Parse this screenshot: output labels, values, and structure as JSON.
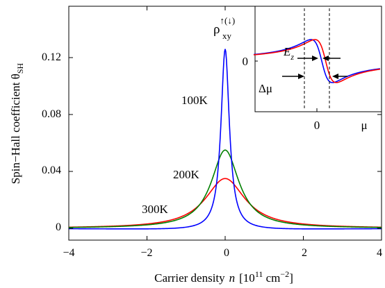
{
  "chart_data": [
    {
      "type": "line",
      "xlabel_main": "Carrier density",
      "xlabel_var": "n",
      "xlabel_unit": "[10",
      "xlabel_exp1": "11",
      "xlabel_unit2": " cm",
      "xlabel_exp2": "−2",
      "xlabel_close": "]",
      "ylabel_main": "Spin−Hall coefficient  θ",
      "ylabel_sub": "SH",
      "xlim": [
        -4,
        4
      ],
      "ylim": [
        -0.008,
        0.145
      ],
      "x_ticks": [
        -4,
        -2,
        0,
        2,
        4
      ],
      "x_tick_labels": [
        "−4",
        "−2",
        "0",
        "2",
        "4"
      ],
      "y_ticks": [
        0,
        0.04,
        0.08,
        0.12
      ],
      "y_tick_labels": [
        "0",
        "0.04",
        "0.08",
        "0.12"
      ],
      "grid": false,
      "series": [
        {
          "name": "100K",
          "color": "#0000ff",
          "peak": 0.126,
          "width": 0.13,
          "under": 0.0015
        },
        {
          "name": "200K",
          "color": "#007f00",
          "peak": 0.055,
          "width": 0.43,
          "under": 0.0
        },
        {
          "name": "300K",
          "color": "#ff0000",
          "peak": 0.035,
          "width": 0.62,
          "under": 0.0
        }
      ]
    },
    {
      "type": "line",
      "role": "inset",
      "x_tick_label": "0",
      "y_tick_label": "0",
      "xlabel": "μ",
      "ylabel_main": "ρ",
      "ylabel_sup": "↑(↓)",
      "ylabel_sub": "xy",
      "annotation_ez": "E",
      "annotation_ez_sub": "z",
      "annotation_dmu": "Δμ",
      "series": [
        {
          "color": "#0000ff",
          "center": 0.1
        },
        {
          "color": "#ff0000",
          "center": 0.18
        }
      ]
    }
  ]
}
